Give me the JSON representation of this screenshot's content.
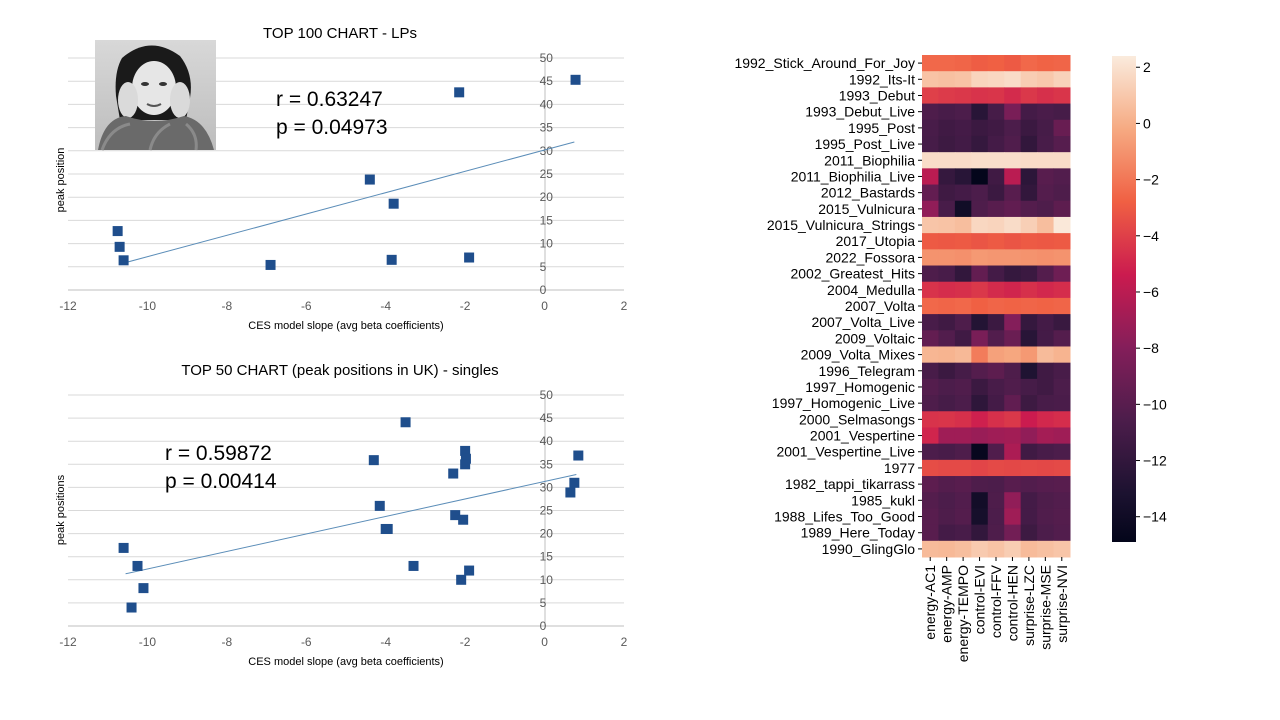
{
  "chart_data": [
    {
      "type": "scatter",
      "title": "TOP 100 CHART - LPs",
      "xlabel": "CES model slope (avg beta coefficients)",
      "ylabel": "peak position",
      "xlim": [
        -12,
        2
      ],
      "ylim": [
        0,
        50
      ],
      "x_ticks": [
        -12,
        -10,
        -8,
        -6,
        -4,
        -2,
        0,
        2
      ],
      "y_ticks": [
        0,
        5,
        10,
        15,
        20,
        25,
        30,
        35,
        40,
        45,
        50
      ],
      "grid": "horizontal",
      "marker_color": "#1F4E8C",
      "trendline_color": "#5B8DB8",
      "points": [
        {
          "x": -10.75,
          "y": 12.7
        },
        {
          "x": -10.7,
          "y": 9.3
        },
        {
          "x": -10.6,
          "y": 6.4
        },
        {
          "x": -6.9,
          "y": 5.4
        },
        {
          "x": -4.4,
          "y": 23.8
        },
        {
          "x": -3.8,
          "y": 18.6
        },
        {
          "x": -3.85,
          "y": 6.5
        },
        {
          "x": -2.15,
          "y": 42.6
        },
        {
          "x": -1.9,
          "y": 7.0
        },
        {
          "x": 0.78,
          "y": 45.3
        }
      ],
      "trendline": {
        "x1": -10.6,
        "y1": 5.8,
        "x2": 0.75,
        "y2": 31.9
      },
      "stats": {
        "r": "r = 0.63247",
        "p": "p = 0.04973"
      }
    },
    {
      "type": "scatter",
      "title": "TOP 50 CHART (peak positions in UK) - singles",
      "xlabel": "CES model slope (avg beta coefficients)",
      "ylabel": "peak positions",
      "xlim": [
        -12,
        2
      ],
      "ylim": [
        0,
        50
      ],
      "x_ticks": [
        -12,
        -10,
        -8,
        -6,
        -4,
        -2,
        0,
        2
      ],
      "y_ticks": [
        0,
        5,
        10,
        15,
        20,
        25,
        30,
        35,
        40,
        45,
        50
      ],
      "grid": "horizontal",
      "marker_color": "#1F4E8C",
      "trendline_color": "#5B8DB8",
      "points": [
        {
          "x": -10.6,
          "y": 16.9
        },
        {
          "x": -10.25,
          "y": 13.0
        },
        {
          "x": -10.1,
          "y": 8.2
        },
        {
          "x": -10.4,
          "y": 4.0
        },
        {
          "x": -4.3,
          "y": 35.9
        },
        {
          "x": -3.5,
          "y": 44.1
        },
        {
          "x": -4.15,
          "y": 26.0
        },
        {
          "x": -4.0,
          "y": 21.0
        },
        {
          "x": -3.95,
          "y": 21.0
        },
        {
          "x": -3.3,
          "y": 13.0
        },
        {
          "x": -2.3,
          "y": 33.0
        },
        {
          "x": -2.25,
          "y": 24.0
        },
        {
          "x": -2.05,
          "y": 23.0
        },
        {
          "x": -2.1,
          "y": 10.0
        },
        {
          "x": -2.0,
          "y": 37.9
        },
        {
          "x": -1.98,
          "y": 36.2
        },
        {
          "x": -2.0,
          "y": 35.0
        },
        {
          "x": -1.9,
          "y": 12.0
        },
        {
          "x": 0.65,
          "y": 28.9
        },
        {
          "x": 0.75,
          "y": 31.0
        },
        {
          "x": 0.85,
          "y": 36.9
        }
      ],
      "trendline": {
        "x1": -10.55,
        "y1": 11.3,
        "x2": 0.8,
        "y2": 32.8
      },
      "stats": {
        "r": "r = 0.59872",
        "p": "p = 0.00414"
      }
    },
    {
      "type": "heatmap",
      "rows": [
        "1992_Stick_Around_For_Joy",
        "1992_Its-It",
        "1993_Debut",
        "1993_Debut_Live",
        "1995_Post",
        "1995_Post_Live",
        "2011_Biophilia",
        "2011_Biophilia_Live",
        "2012_Bastards",
        "2015_Vulnicura",
        "2015_Vulnicura_Strings",
        "2017_Utopia",
        "2022_Fossora",
        "2002_Greatest_Hits",
        "2004_Medulla",
        "2007_Volta",
        "2007_Volta_Live",
        "2009_Voltaic",
        "2009_Volta_Mixes",
        "1996_Telegram",
        "1997_Homogenic",
        "1997_Homogenic_Live",
        "2000_Selmasongs",
        "2001_Vespertine",
        "2001_Vespertine_Live",
        "1977",
        "1982_tappi_tikarrass",
        "1985_kukl",
        "1988_Lifes_Too_Good",
        "1989_Here_Today",
        "1990_GlingGlo"
      ],
      "columns": [
        "energy-AC1",
        "energy-AMP",
        "energy-TEMPO",
        "control-EVI",
        "control-FFV",
        "control-HEN",
        "surprise-LZC",
        "surprise-MSE",
        "surprise-NVI"
      ],
      "values": [
        [
          -2.5,
          -2.5,
          -2.6,
          -2.9,
          -2.8,
          -3.0,
          -2.5,
          -2.7,
          -2.6
        ],
        [
          0.8,
          0.7,
          0.8,
          1.5,
          1.6,
          1.8,
          1.2,
          1.0,
          1.4
        ],
        [
          -4.0,
          -4.2,
          -4.3,
          -4.5,
          -4.4,
          -4.8,
          -4.3,
          -4.6,
          -4.4
        ],
        [
          -10.5,
          -10.8,
          -10.6,
          -12.5,
          -10.9,
          -8.5,
          -11.0,
          -10.7,
          -10.9
        ],
        [
          -10.8,
          -11.2,
          -11.0,
          -11.5,
          -11.2,
          -10.6,
          -11.5,
          -10.9,
          -9.3
        ],
        [
          -10.9,
          -11.4,
          -11.1,
          -11.8,
          -11.0,
          -10.4,
          -12.0,
          -10.8,
          -10.1
        ],
        [
          1.8,
          1.8,
          1.8,
          1.9,
          1.9,
          1.9,
          1.8,
          1.8,
          1.8
        ],
        [
          -6.0,
          -11.8,
          -12.5,
          -14.8,
          -11.2,
          -6.0,
          -12.3,
          -10.0,
          -10.3
        ],
        [
          -9.5,
          -11.3,
          -11.0,
          -10.6,
          -11.5,
          -10.0,
          -12.0,
          -10.2,
          -10.5
        ],
        [
          -7.5,
          -10.8,
          -13.9,
          -10.5,
          -10.0,
          -9.6,
          -10.2,
          -10.5,
          -9.8
        ],
        [
          0.9,
          0.8,
          0.6,
          1.6,
          1.5,
          1.8,
          1.3,
          0.6,
          2.3
        ],
        [
          -3.0,
          -3.1,
          -3.0,
          -3.2,
          -3.0,
          -3.2,
          -3.0,
          -3.1,
          -3.0
        ],
        [
          -1.0,
          -1.0,
          -1.1,
          -0.8,
          -0.9,
          -0.9,
          -1.0,
          -1.1,
          -1.0
        ],
        [
          -10.5,
          -10.8,
          -12.0,
          -9.5,
          -11.0,
          -11.8,
          -11.5,
          -10.2,
          -9.0
        ],
        [
          -4.5,
          -4.7,
          -4.6,
          -4.3,
          -4.8,
          -5.0,
          -4.6,
          -4.9,
          -4.7
        ],
        [
          -2.5,
          -2.6,
          -2.5,
          -2.8,
          -2.6,
          -2.7,
          -2.6,
          -2.7,
          -2.6
        ],
        [
          -10.8,
          -11.2,
          -10.5,
          -12.8,
          -11.5,
          -8.0,
          -11.8,
          -11.0,
          -11.6
        ],
        [
          -9.5,
          -10.3,
          -11.2,
          -8.5,
          -10.3,
          -9.2,
          -12.5,
          -11.0,
          -10.2
        ],
        [
          0.3,
          0.2,
          0.4,
          -1.8,
          -0.5,
          -0.3,
          -0.8,
          0.5,
          0.2
        ],
        [
          -10.8,
          -11.5,
          -10.9,
          -10.2,
          -9.8,
          -10.5,
          -13.0,
          -11.2,
          -10.8
        ],
        [
          -10.2,
          -10.6,
          -10.4,
          -11.5,
          -10.8,
          -10.4,
          -10.9,
          -11.2,
          -10.6
        ],
        [
          -10.5,
          -10.9,
          -10.6,
          -12.2,
          -11.0,
          -9.6,
          -11.4,
          -10.8,
          -10.7
        ],
        [
          -4.5,
          -4.4,
          -4.6,
          -5.2,
          -4.6,
          -4.3,
          -5.4,
          -4.9,
          -4.7
        ],
        [
          -5.0,
          -7.0,
          -7.0,
          -7.2,
          -7.0,
          -6.9,
          -7.5,
          -6.8,
          -7.0
        ],
        [
          -10.6,
          -10.8,
          -10.5,
          -14.6,
          -10.4,
          -6.5,
          -11.2,
          -10.8,
          -10.6
        ],
        [
          -3.5,
          -3.6,
          -3.6,
          -3.8,
          -3.6,
          -3.7,
          -3.6,
          -3.7,
          -3.6
        ],
        [
          -9.8,
          -10.2,
          -10.0,
          -10.5,
          -10.6,
          -10.0,
          -10.3,
          -10.1,
          -10.0
        ],
        [
          -10.2,
          -10.6,
          -10.3,
          -13.8,
          -10.5,
          -7.5,
          -11.0,
          -10.5,
          -10.3
        ],
        [
          -10.0,
          -10.5,
          -10.2,
          -13.6,
          -10.6,
          -7.0,
          -11.0,
          -10.4,
          -10.2
        ],
        [
          -10.0,
          -11.0,
          -10.8,
          -12.0,
          -10.5,
          -8.8,
          -11.4,
          -10.6,
          -10.3
        ],
        [
          0.5,
          0.4,
          0.6,
          1.1,
          0.8,
          1.2,
          0.5,
          0.7,
          0.9
        ]
      ],
      "colorbar_ticks": [
        2,
        0,
        -2,
        -4,
        -6,
        -8,
        -10,
        -12,
        -14
      ],
      "vmin": -14.9,
      "vmax": 2.4,
      "colormap": "rocket"
    }
  ],
  "photo": {
    "name": "artist-portrait"
  }
}
